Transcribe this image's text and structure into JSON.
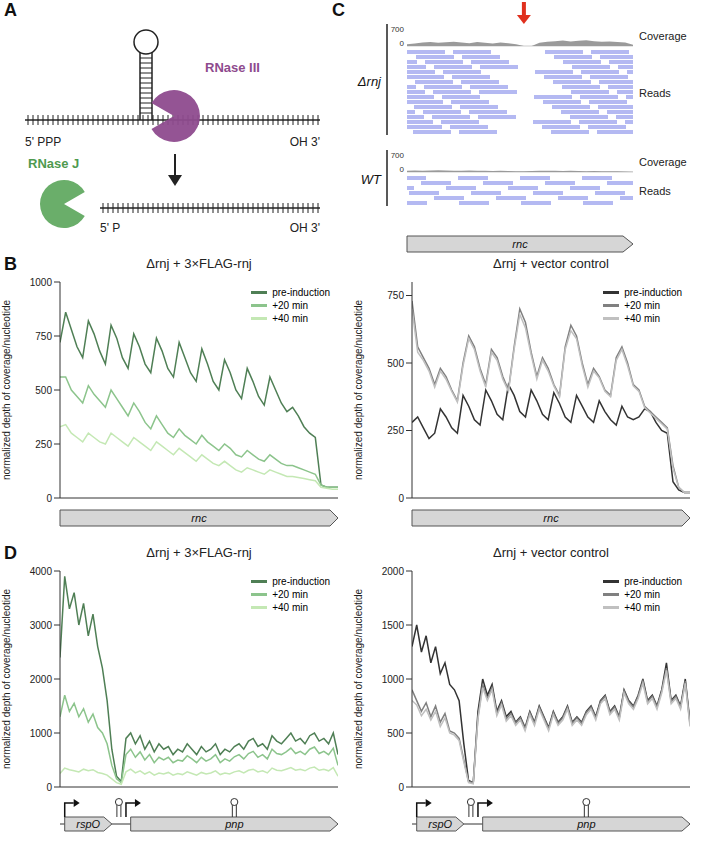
{
  "panel_labels": [
    "A",
    "B",
    "C",
    "D"
  ],
  "diagram": {
    "enzymes": [
      "RNase III",
      "RNase J"
    ],
    "substrate_ends": [
      "5' PPP",
      "OH 3'"
    ],
    "product_ends": [
      "5' P",
      "OH 3'"
    ]
  },
  "browser": {
    "tracks": [
      {
        "name": "Δrnj",
        "coverage": [
          60,
          90,
          120,
          140,
          110,
          130,
          150,
          120,
          100,
          140,
          110,
          90,
          120,
          100,
          60,
          0,
          0,
          110,
          150,
          170,
          190,
          160,
          180,
          200,
          170,
          150,
          160,
          140,
          120,
          40
        ]
      },
      {
        "name": "WT",
        "coverage": [
          40,
          50,
          45,
          55,
          60,
          50,
          45,
          40,
          50,
          45,
          40,
          35,
          40,
          35,
          30,
          30,
          35,
          40,
          45,
          40,
          35,
          40,
          35,
          30,
          35,
          30,
          30,
          25,
          20,
          10
        ]
      }
    ],
    "scale_ticks": [
      0,
      700
    ],
    "rows": [
      "Coverage",
      "Reads"
    ],
    "gene": "rnc",
    "arrow_at": 15
  },
  "chart_data": [
    {
      "type": "line",
      "title": "Δrnj + 3×FLAG-rnj",
      "ylabel": "normalized depth of coverage/nucleotide",
      "x": [
        0,
        1,
        2,
        3,
        4,
        5,
        6,
        7,
        8,
        9,
        10,
        11,
        12,
        13,
        14,
        15,
        16,
        17,
        18,
        19,
        20,
        21,
        22,
        23,
        24,
        25,
        26,
        27,
        28,
        29,
        30,
        31,
        32,
        33,
        34,
        35,
        36,
        37,
        38,
        39,
        40,
        41,
        42,
        43,
        44,
        45,
        46,
        47,
        48,
        49
      ],
      "xlim": [
        0,
        49
      ],
      "ylim": [
        0,
        1000
      ],
      "yticks": [
        0,
        250,
        500,
        750,
        1000
      ],
      "tick_labels": "y",
      "legend": "upper right",
      "series": [
        {
          "name": "pre-induction",
          "color": "#4f7f55",
          "values": [
            720,
            860,
            780,
            700,
            650,
            820,
            760,
            680,
            620,
            800,
            740,
            650,
            600,
            760,
            700,
            620,
            580,
            740,
            680,
            600,
            560,
            720,
            650,
            580,
            540,
            690,
            620,
            540,
            500,
            640,
            580,
            500,
            460,
            600,
            540,
            470,
            430,
            560,
            500,
            440,
            400,
            420,
            380,
            330,
            300,
            280,
            60,
            50,
            50,
            50
          ]
        },
        {
          "name": "+20 min",
          "color": "#8cc48c",
          "values": [
            560,
            560,
            500,
            470,
            440,
            520,
            480,
            450,
            420,
            500,
            460,
            420,
            380,
            440,
            400,
            350,
            320,
            380,
            340,
            300,
            280,
            320,
            290,
            270,
            250,
            290,
            260,
            240,
            220,
            250,
            230,
            200,
            190,
            220,
            200,
            180,
            170,
            200,
            180,
            160,
            150,
            150,
            140,
            130,
            120,
            110,
            60,
            50,
            50,
            50
          ]
        },
        {
          "name": "+40 min",
          "color": "#c4e8b4",
          "values": [
            330,
            340,
            300,
            280,
            260,
            300,
            280,
            260,
            250,
            300,
            280,
            260,
            240,
            280,
            260,
            240,
            220,
            260,
            240,
            220,
            200,
            230,
            210,
            190,
            170,
            200,
            180,
            160,
            150,
            170,
            150,
            130,
            120,
            140,
            130,
            120,
            110,
            130,
            120,
            110,
            100,
            100,
            95,
            90,
            85,
            80,
            50,
            45,
            40,
            40
          ]
        }
      ],
      "genes": [
        {
          "name": "rnc",
          "start": 0,
          "end": 49
        }
      ]
    },
    {
      "type": "line",
      "title": "Δrnj + vector control",
      "ylabel": "normalized depth of coverage/nucleotide",
      "x": [
        0,
        1,
        2,
        3,
        4,
        5,
        6,
        7,
        8,
        9,
        10,
        11,
        12,
        13,
        14,
        15,
        16,
        17,
        18,
        19,
        20,
        21,
        22,
        23,
        24,
        25,
        26,
        27,
        28,
        29,
        30,
        31,
        32,
        33,
        34,
        35,
        36,
        37,
        38,
        39,
        40,
        41,
        42,
        43,
        44,
        45,
        46,
        47,
        48,
        49
      ],
      "xlim": [
        0,
        49
      ],
      "ylim": [
        0,
        800
      ],
      "yticks": [
        0,
        250,
        500,
        750
      ],
      "tick_labels": "y",
      "legend": "upper right",
      "series": [
        {
          "name": "pre-induction",
          "color": "#333333",
          "values": [
            280,
            300,
            260,
            220,
            240,
            330,
            300,
            260,
            240,
            380,
            340,
            290,
            270,
            400,
            360,
            310,
            290,
            420,
            380,
            320,
            300,
            400,
            360,
            310,
            290,
            390,
            350,
            300,
            280,
            380,
            340,
            300,
            280,
            360,
            320,
            290,
            270,
            340,
            300,
            290,
            300,
            330,
            320,
            280,
            250,
            240,
            60,
            30,
            20,
            20
          ]
        },
        {
          "name": "+20 min",
          "color": "#808080",
          "values": [
            730,
            560,
            520,
            480,
            420,
            480,
            450,
            400,
            360,
            500,
            600,
            560,
            480,
            420,
            550,
            520,
            450,
            400,
            560,
            700,
            650,
            540,
            450,
            520,
            480,
            420,
            380,
            560,
            640,
            600,
            500,
            420,
            480,
            450,
            400,
            380,
            520,
            560,
            500,
            420,
            400,
            340,
            320,
            300,
            280,
            260,
            120,
            40,
            20,
            20
          ]
        },
        {
          "name": "+40 min",
          "color": "#c0c0c0",
          "values": [
            700,
            540,
            510,
            470,
            410,
            470,
            440,
            395,
            355,
            490,
            590,
            550,
            470,
            410,
            540,
            510,
            440,
            395,
            550,
            680,
            630,
            530,
            440,
            510,
            470,
            415,
            375,
            550,
            620,
            590,
            490,
            410,
            470,
            445,
            395,
            375,
            510,
            550,
            490,
            415,
            395,
            335,
            315,
            295,
            275,
            255,
            110,
            40,
            20,
            20
          ]
        }
      ],
      "genes": [
        {
          "name": "rnc",
          "start": 0,
          "end": 49
        }
      ]
    },
    {
      "type": "line",
      "title": "Δrnj + 3×FLAG-rnj",
      "ylabel": "normalized depth of coverage/nucleotide",
      "x": [
        0,
        1,
        2,
        3,
        4,
        5,
        6,
        7,
        8,
        9,
        10,
        11,
        12,
        13,
        14,
        15,
        16,
        17,
        18,
        19,
        20,
        21,
        22,
        23,
        24,
        25,
        26,
        27,
        28,
        29,
        30,
        31,
        32,
        33,
        34,
        35,
        36,
        37,
        38,
        39,
        40,
        41,
        42,
        43,
        44,
        45,
        46,
        47,
        48,
        49,
        50,
        51,
        52,
        53,
        54,
        55,
        56,
        57,
        58,
        59
      ],
      "xlim": [
        0,
        59
      ],
      "ylim": [
        0,
        4000
      ],
      "yticks": [
        0,
        1000,
        2000,
        3000,
        4000
      ],
      "tick_labels": "y",
      "legend": "upper right",
      "series": [
        {
          "name": "pre-induction",
          "color": "#4f7f55",
          "values": [
            2400,
            3900,
            3300,
            3600,
            3000,
            3400,
            2800,
            3200,
            2600,
            2200,
            1600,
            700,
            200,
            100,
            900,
            1000,
            800,
            950,
            700,
            850,
            650,
            800,
            700,
            750,
            600,
            700,
            650,
            800,
            700,
            600,
            750,
            650,
            700,
            800,
            600,
            700,
            650,
            750,
            800,
            700,
            850,
            900,
            750,
            800,
            700,
            950,
            850,
            800,
            900,
            1000,
            850,
            900,
            800,
            950,
            1000,
            850,
            900,
            800,
            1000,
            600
          ]
        },
        {
          "name": "+20 min",
          "color": "#8cc48c",
          "values": [
            1300,
            1700,
            1400,
            1550,
            1300,
            1450,
            1200,
            1350,
            1100,
            1000,
            800,
            400,
            150,
            80,
            600,
            700,
            550,
            650,
            500,
            600,
            450,
            550,
            500,
            550,
            450,
            500,
            480,
            580,
            520,
            450,
            550,
            480,
            520,
            600,
            450,
            520,
            480,
            560,
            600,
            520,
            620,
            660,
            550,
            600,
            520,
            700,
            620,
            600,
            650,
            720,
            620,
            660,
            600,
            700,
            740,
            620,
            660,
            600,
            720,
            400
          ]
        },
        {
          "name": "+40 min",
          "color": "#c4e8b4",
          "values": [
            250,
            350,
            320,
            300,
            280,
            330,
            300,
            320,
            270,
            250,
            220,
            150,
            80,
            50,
            280,
            330,
            260,
            300,
            240,
            280,
            220,
            260,
            240,
            270,
            220,
            250,
            230,
            280,
            250,
            220,
            270,
            240,
            260,
            300,
            230,
            260,
            240,
            280,
            300,
            260,
            310,
            330,
            280,
            300,
            260,
            350,
            310,
            300,
            330,
            360,
            310,
            330,
            300,
            350,
            370,
            310,
            330,
            300,
            360,
            200
          ]
        }
      ],
      "genes": [
        {
          "name": "rspO",
          "start": 1,
          "end": 11
        },
        {
          "name": "pnp",
          "start": 15,
          "end": 59
        }
      ],
      "promoters": [
        1,
        14
      ],
      "terminators": [
        12.5,
        37
      ]
    },
    {
      "type": "line",
      "title": "Δrnj + vector control",
      "ylabel": "normalized depth of coverage/nucleotide",
      "x": [
        0,
        1,
        2,
        3,
        4,
        5,
        6,
        7,
        8,
        9,
        10,
        11,
        12,
        13,
        14,
        15,
        16,
        17,
        18,
        19,
        20,
        21,
        22,
        23,
        24,
        25,
        26,
        27,
        28,
        29,
        30,
        31,
        32,
        33,
        34,
        35,
        36,
        37,
        38,
        39,
        40,
        41,
        42,
        43,
        44,
        45,
        46,
        47,
        48,
        49,
        50,
        51,
        52,
        53,
        54,
        55,
        56,
        57,
        58,
        59
      ],
      "xlim": [
        0,
        59
      ],
      "ylim": [
        0,
        2000
      ],
      "yticks": [
        0,
        500,
        1000,
        1500,
        2000
      ],
      "tick_labels": "y",
      "legend": "upper right",
      "series": [
        {
          "name": "pre-induction",
          "color": "#333333",
          "values": [
            1300,
            1500,
            1250,
            1400,
            1150,
            1300,
            1050,
            1150,
            950,
            900,
            800,
            400,
            60,
            40,
            700,
            1000,
            850,
            950,
            700,
            800,
            650,
            700,
            600,
            650,
            550,
            700,
            600,
            750,
            650,
            550,
            700,
            600,
            650,
            750,
            600,
            650,
            600,
            700,
            750,
            650,
            800,
            850,
            700,
            750,
            650,
            900,
            800,
            750,
            850,
            1000,
            800,
            850,
            750,
            900,
            1150,
            800,
            850,
            750,
            1000,
            600
          ]
        },
        {
          "name": "+20 min",
          "color": "#808080",
          "values": [
            900,
            800,
            700,
            780,
            650,
            750,
            600,
            680,
            520,
            500,
            450,
            250,
            50,
            40,
            650,
            950,
            820,
            920,
            680,
            780,
            630,
            680,
            590,
            640,
            540,
            690,
            590,
            740,
            640,
            540,
            690,
            590,
            640,
            740,
            590,
            640,
            590,
            690,
            740,
            640,
            790,
            840,
            690,
            740,
            640,
            890,
            790,
            740,
            840,
            980,
            790,
            840,
            740,
            890,
            1100,
            790,
            840,
            740,
            980,
            580
          ]
        },
        {
          "name": "+40 min",
          "color": "#c0c0c0",
          "values": [
            800,
            760,
            660,
            720,
            620,
            700,
            560,
            640,
            500,
            480,
            430,
            230,
            40,
            30,
            630,
            920,
            800,
            900,
            660,
            760,
            610,
            660,
            570,
            620,
            520,
            670,
            570,
            720,
            620,
            520,
            670,
            570,
            620,
            720,
            570,
            620,
            570,
            670,
            720,
            620,
            770,
            820,
            670,
            720,
            620,
            870,
            770,
            720,
            820,
            960,
            770,
            820,
            720,
            870,
            1080,
            770,
            820,
            720,
            960,
            560
          ]
        }
      ],
      "genes": [
        {
          "name": "rspO",
          "start": 1,
          "end": 11
        },
        {
          "name": "pnp",
          "start": 15,
          "end": 59
        }
      ],
      "promoters": [
        1,
        14
      ],
      "terminators": [
        12.5,
        37
      ]
    }
  ]
}
